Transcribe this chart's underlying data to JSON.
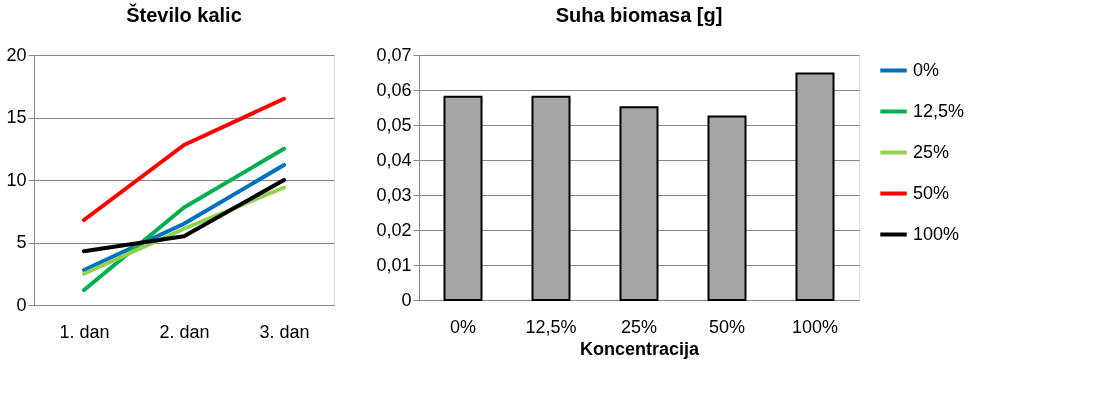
{
  "chart_data": [
    {
      "type": "line",
      "title": "Število kalic",
      "categories": [
        "1. dan",
        "2. dan",
        "3. dan"
      ],
      "ylim": [
        0,
        20
      ],
      "yticks": [
        0,
        5,
        10,
        15,
        20
      ],
      "grid": "y",
      "legend": "right",
      "series": [
        {
          "name": "0%",
          "color": "#0070c0",
          "values": [
            2.8,
            6.5,
            11.2
          ]
        },
        {
          "name": "12,5%",
          "color": "#00b050",
          "values": [
            1.2,
            7.8,
            12.5
          ]
        },
        {
          "name": "25%",
          "color": "#92d050",
          "values": [
            2.5,
            6.1,
            9.4
          ]
        },
        {
          "name": "50%",
          "color": "#ff0000",
          "values": [
            6.8,
            12.8,
            16.5
          ]
        },
        {
          "name": "100%",
          "color": "#000000",
          "values": [
            4.3,
            5.5,
            10.0
          ]
        }
      ]
    },
    {
      "type": "bar",
      "title": "Suha biomasa [g]",
      "xlabel": "Koncentracija",
      "categories": [
        "0%",
        "12,5%",
        "25%",
        "50%",
        "100%"
      ],
      "values": [
        0.0581,
        0.0581,
        0.0551,
        0.0524,
        0.0647
      ],
      "color": "#a6a6a6",
      "ylim": [
        0,
        0.07
      ],
      "grid": "y",
      "yticks": [
        0,
        {
          "value": 0.01,
          "label": "0,01"
        },
        {
          "value": 0.02,
          "label": "0,02"
        },
        {
          "value": 0.03,
          "label": "0,03"
        },
        {
          "value": 0.04,
          "label": "0,04"
        },
        {
          "value": 0.05,
          "label": "0,05"
        },
        {
          "value": 0.06,
          "label": "0,06"
        },
        {
          "value": 0.07,
          "label": "0,07"
        }
      ]
    }
  ]
}
